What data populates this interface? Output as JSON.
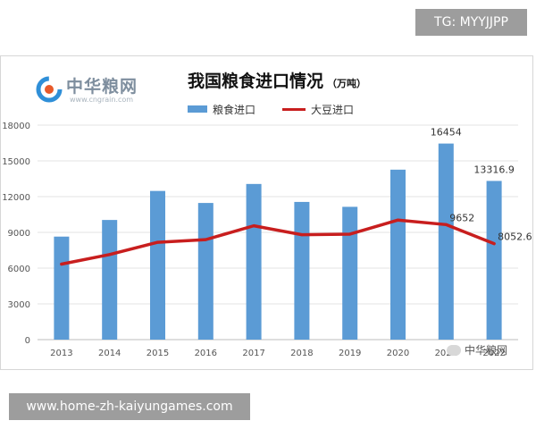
{
  "overlay": {
    "tg_label": "TG: MYYJJPP",
    "site_url": "www.home-zh-kaiyungames.com"
  },
  "logo": {
    "name": "中华粮网",
    "url": "www.cngrain.com"
  },
  "watermark": {
    "text": "中华粮网"
  },
  "colors": {
    "bar": "#5b9bd5",
    "line": "#c81e1e",
    "grid": "#e3e3e3",
    "axis_text": "#555555"
  },
  "chart_data": {
    "type": "bar",
    "title": "我国粮食进口情况",
    "unit": "（万吨）",
    "categories": [
      "2013",
      "2014",
      "2015",
      "2016",
      "2017",
      "2018",
      "2019",
      "2020",
      "2021",
      "2022"
    ],
    "series": [
      {
        "name": "粮食进口",
        "type": "bar",
        "values": [
          8645,
          10042,
          12477,
          11468,
          13062,
          11555,
          11144,
          14262,
          16454,
          13316.9
        ]
      },
      {
        "name": "大豆进口",
        "type": "line",
        "values": [
          6338,
          7140,
          8169,
          8391,
          9553,
          8803,
          8851,
          10033,
          9652,
          8052.6
        ]
      }
    ],
    "data_labels": [
      {
        "series": 0,
        "index": 8,
        "text": "16454"
      },
      {
        "series": 0,
        "index": 9,
        "text": "13316.9"
      },
      {
        "series": 1,
        "index": 8,
        "text": "9652"
      },
      {
        "series": 1,
        "index": 9,
        "text": "8052.6"
      }
    ],
    "yticks": [
      "0",
      "3000",
      "6000",
      "9000",
      "12000",
      "15000",
      "18000"
    ],
    "ylim": [
      0,
      18000
    ],
    "grid": true,
    "legend_position": "top"
  }
}
